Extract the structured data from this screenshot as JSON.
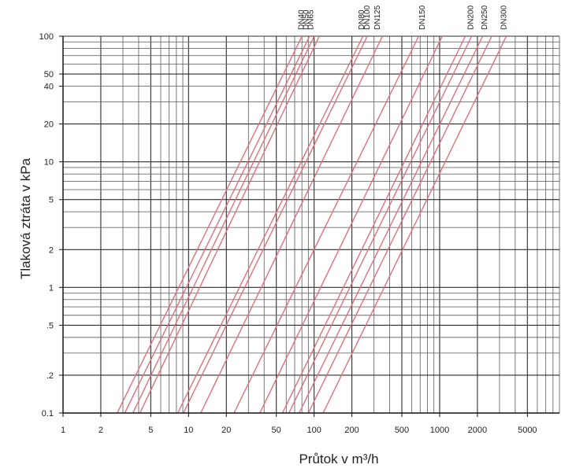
{
  "chart_data": {
    "type": "line",
    "xlabel": "Průtok v  m³/h",
    "ylabel": "Tlaková ztráta v kPa",
    "xscale": "log",
    "yscale": "log",
    "xlim": [
      1,
      9000
    ],
    "ylim": [
      0.1,
      100
    ],
    "grid": true,
    "x_ticks": [
      {
        "value": 1,
        "label": "1"
      },
      {
        "value": 2,
        "label": "2"
      },
      {
        "value": 5,
        "label": "5"
      },
      {
        "value": 10,
        "label": "10"
      },
      {
        "value": 20,
        "label": "20"
      },
      {
        "value": 50,
        "label": "50"
      },
      {
        "value": 100,
        "label": "100"
      },
      {
        "value": 200,
        "label": "200"
      },
      {
        "value": 500,
        "label": "500"
      },
      {
        "value": 1000,
        "label": "1000"
      },
      {
        "value": 2000,
        "label": "2000"
      },
      {
        "value": 5000,
        "label": "5000"
      }
    ],
    "y_ticks": [
      {
        "value": 0.1,
        "label": "0.1"
      },
      {
        "value": 0.2,
        "label": ".2"
      },
      {
        "value": 0.5,
        "label": ".5"
      },
      {
        "value": 1,
        "label": "1"
      },
      {
        "value": 2,
        "label": "2"
      },
      {
        "value": 5,
        "label": "5"
      },
      {
        "value": 10,
        "label": "10"
      },
      {
        "value": 20,
        "label": "20"
      },
      {
        "value": 40,
        "label": "40"
      },
      {
        "value": 50,
        "label": "50"
      },
      {
        "value": 100,
        "label": "100"
      }
    ],
    "series": [
      {
        "name": "DN40",
        "lines": [
          {
            "x": [
              2.7,
              80
            ],
            "y": [
              0.1,
              100
            ]
          },
          {
            "x": [
              3.1,
              92
            ],
            "y": [
              0.1,
              100
            ]
          }
        ]
      },
      {
        "name": "DN50",
        "lines": [
          {
            "x": [
              3.6,
              100
            ],
            "y": [
              0.1,
              100
            ]
          },
          {
            "x": [
              4.1,
              110
            ],
            "y": [
              0.1,
              100
            ]
          }
        ]
      },
      {
        "name": "DN65",
        "lines": [
          {
            "x": [
              8.2,
              245
            ],
            "y": [
              0.1,
              100
            ]
          },
          {
            "x": [
              9.1,
              265
            ],
            "y": [
              0.1,
              100
            ]
          }
        ]
      },
      {
        "name": "DN80",
        "lines": [
          {
            "x": [
              12.5,
              350
            ],
            "y": [
              0.1,
              100
            ]
          }
        ]
      },
      {
        "name": "DN100",
        "lines": [
          {
            "x": [
              23,
              680
            ],
            "y": [
              0.1,
              100
            ]
          }
        ]
      },
      {
        "name": "DN125",
        "lines": [
          {
            "x": [
              37,
              1050
            ],
            "y": [
              0.1,
              100
            ]
          }
        ]
      },
      {
        "name": "DN150",
        "lines": [
          {
            "x": [
              56,
              1600
            ],
            "y": [
              0.1,
              100
            ]
          },
          {
            "x": [
              63,
              1800
            ],
            "y": [
              0.1,
              100
            ]
          }
        ]
      },
      {
        "name": "DN200",
        "lines": [
          {
            "x": [
              76,
              2200
            ],
            "y": [
              0.1,
              100
            ]
          }
        ]
      },
      {
        "name": "DN250",
        "lines": [
          {
            "x": [
              90,
              2600
            ],
            "y": [
              0.1,
              100
            ]
          }
        ]
      },
      {
        "name": "DN300",
        "lines": [
          {
            "x": [
              118,
              3400
            ],
            "y": [
              0.1,
              100
            ]
          }
        ]
      }
    ],
    "top_labels": [
      {
        "text": "DN40",
        "x": 78
      },
      {
        "text": "DN50",
        "x": 85
      },
      {
        "text": "DN65",
        "x": 93
      },
      {
        "text": "DN80",
        "x": 235
      },
      {
        "text": "DN100",
        "x": 260
      },
      {
        "text": "DN125",
        "x": 315
      },
      {
        "text": "DN150",
        "x": 720
      },
      {
        "text": "DN200",
        "x": 1750
      },
      {
        "text": "DN250",
        "x": 2250
      },
      {
        "text": "DN300",
        "x": 3200
      }
    ]
  },
  "colors": {
    "series": "#e0707c",
    "grid_major": "#2b2b2b",
    "grid_minor": "#6a6a6a",
    "text": "#222222"
  }
}
